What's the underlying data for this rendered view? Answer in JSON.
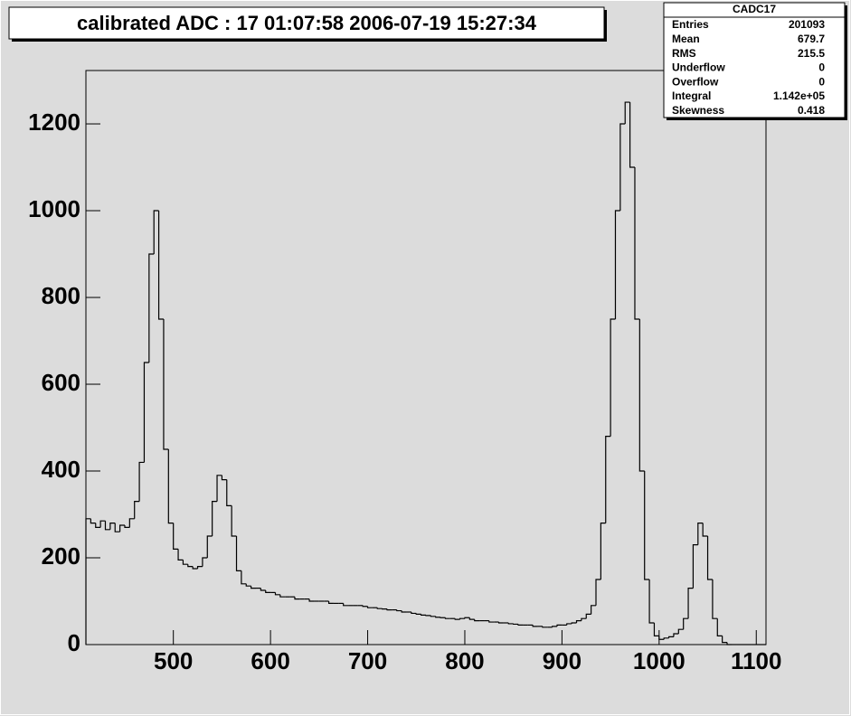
{
  "chart_data": {
    "type": "histogram",
    "title": "calibrated ADC :  17  01:07:58  2006-07-19  15:27:34",
    "color": "#000000",
    "xlim": [
      410,
      1110
    ],
    "ylim": [
      0,
      1323
    ],
    "xticks": [
      500,
      600,
      700,
      800,
      900,
      1000,
      1100
    ],
    "yticks": [
      0,
      200,
      400,
      600,
      800,
      1000,
      1200
    ],
    "bins": [
      410,
      415,
      420,
      425,
      430,
      435,
      440,
      445,
      450,
      455,
      460,
      465,
      470,
      475,
      480,
      485,
      490,
      495,
      500,
      505,
      510,
      515,
      520,
      525,
      530,
      535,
      540,
      545,
      550,
      555,
      560,
      565,
      570,
      575,
      580,
      585,
      590,
      595,
      600,
      605,
      610,
      615,
      620,
      625,
      630,
      635,
      640,
      645,
      650,
      655,
      660,
      665,
      670,
      675,
      680,
      685,
      690,
      695,
      700,
      705,
      710,
      715,
      720,
      725,
      730,
      735,
      740,
      745,
      750,
      755,
      760,
      765,
      770,
      775,
      780,
      785,
      790,
      795,
      800,
      805,
      810,
      815,
      820,
      825,
      830,
      835,
      840,
      845,
      850,
      855,
      860,
      865,
      870,
      875,
      880,
      885,
      890,
      895,
      900,
      905,
      910,
      915,
      920,
      925,
      930,
      935,
      940,
      945,
      950,
      955,
      960,
      965,
      970,
      975,
      980,
      985,
      990,
      995,
      1000,
      1005,
      1010,
      1015,
      1020,
      1025,
      1030,
      1035,
      1040,
      1045,
      1050,
      1055,
      1060,
      1065,
      1070,
      1075,
      1080,
      1085,
      1090,
      1095,
      1100,
      1105,
      1110
    ],
    "values": [
      290,
      280,
      270,
      285,
      265,
      280,
      260,
      275,
      270,
      290,
      330,
      420,
      650,
      900,
      1000,
      750,
      450,
      280,
      220,
      195,
      185,
      180,
      175,
      180,
      200,
      250,
      330,
      390,
      380,
      320,
      250,
      170,
      140,
      135,
      130,
      130,
      125,
      120,
      120,
      115,
      110,
      110,
      110,
      105,
      105,
      105,
      100,
      100,
      100,
      100,
      95,
      95,
      95,
      90,
      90,
      90,
      90,
      88,
      85,
      85,
      83,
      82,
      80,
      80,
      78,
      75,
      75,
      72,
      70,
      68,
      67,
      65,
      63,
      62,
      60,
      60,
      58,
      60,
      62,
      58,
      55,
      55,
      55,
      52,
      52,
      50,
      50,
      48,
      47,
      45,
      45,
      45,
      42,
      42,
      40,
      40,
      42,
      45,
      45,
      48,
      50,
      55,
      60,
      70,
      90,
      150,
      280,
      480,
      750,
      1000,
      1200,
      1250,
      1100,
      750,
      400,
      150,
      50,
      20,
      12,
      15,
      18,
      25,
      35,
      60,
      130,
      230,
      280,
      250,
      150,
      60,
      20,
      5,
      0,
      0,
      0,
      0,
      0,
      0,
      0,
      0
    ],
    "stats_box": {
      "title": "CADC17",
      "rows": [
        [
          "Entries",
          "201093"
        ],
        [
          "Mean",
          "679.7"
        ],
        [
          "RMS",
          "215.5"
        ],
        [
          "Underflow",
          "0"
        ],
        [
          "Overflow",
          "0"
        ],
        [
          "Integral",
          "1.142e+05"
        ],
        [
          "Skewness",
          "0.418"
        ]
      ]
    }
  }
}
